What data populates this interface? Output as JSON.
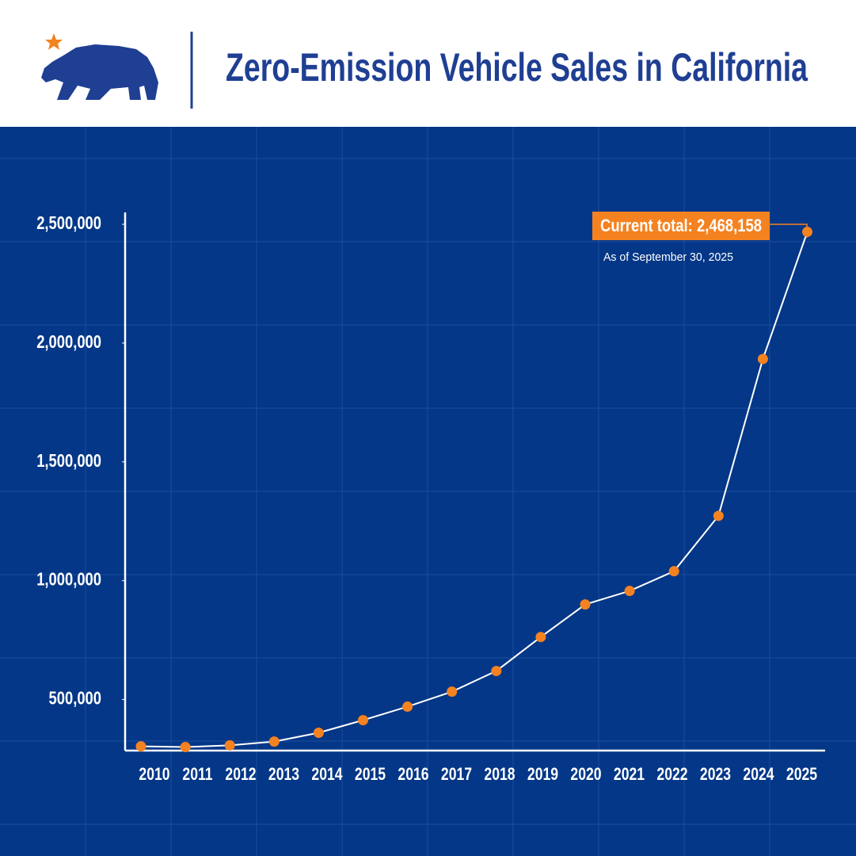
{
  "chart_data": {
    "type": "line",
    "title": "Zero-Emission Vehicle Sales in California",
    "categories": [
      "2010",
      "2011",
      "2012",
      "2013",
      "2014",
      "2015",
      "2016",
      "2017",
      "2018",
      "2019",
      "2020",
      "2021",
      "2022",
      "2023",
      "2024",
      "2025"
    ],
    "series": [
      {
        "name": "Zero-emission vehicle sales",
        "color": "#f58220",
        "values": [
          303000,
          300000,
          307000,
          323000,
          360000,
          413000,
          470000,
          533000,
          620000,
          763000,
          900000,
          957000,
          1040000,
          1273000,
          1933000,
          2468158
        ]
      }
    ],
    "ylim": [
      285000,
      2550000
    ],
    "yticks": [
      {
        "value": 500000,
        "label": "500,000"
      },
      {
        "value": 1000000,
        "label": "1,000,000"
      },
      {
        "value": 1500000,
        "label": "1,500,000"
      },
      {
        "value": 2000000,
        "label": "2,000,000"
      },
      {
        "value": 2500000,
        "label": "2,500,000"
      }
    ],
    "annotation": "Current total: 2,468,158",
    "annotation_note": "As of September 30, 2025"
  }
}
